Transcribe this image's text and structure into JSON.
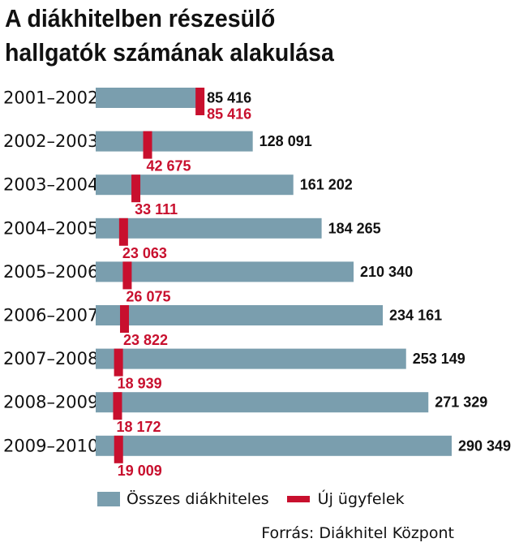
{
  "title_line1": "A diákhitelben részesülő",
  "title_line2": "hallgatók számának alakulása",
  "colors": {
    "total": "#7a9eae",
    "new": "#c8102e",
    "label": "#111111"
  },
  "legend": {
    "total": "Összes diákhiteles",
    "new": "Új ügyfelek"
  },
  "source": "Forrás: Diákhitel Központ",
  "chart_data": {
    "type": "bar",
    "orientation": "horizontal",
    "categories": [
      "2001–2002",
      "2002–2003",
      "2003–2004",
      "2004–2005",
      "2005–2006",
      "2006–2007",
      "2007–2008",
      "2008–2009",
      "2009–2010"
    ],
    "series": [
      {
        "name": "Összes diákhiteles",
        "values": [
          85416,
          128091,
          161202,
          184265,
          210340,
          234161,
          253149,
          271329,
          290349
        ],
        "labels": [
          "85 416",
          "128 091",
          "161 202",
          "184 265",
          "210 340",
          "234 161",
          "253 149",
          "271 329",
          "290 349"
        ]
      },
      {
        "name": "Új ügyfelek",
        "values": [
          85416,
          42675,
          33111,
          23063,
          26075,
          23822,
          18939,
          18172,
          19009
        ],
        "labels": [
          "85 416",
          "42 675",
          "33 111",
          "23 063",
          "26 075",
          "23 822",
          "18 939",
          "18 172",
          "19 009"
        ]
      }
    ],
    "xlim": [
      0,
      290349
    ],
    "grid": false,
    "legend": "bottom"
  }
}
